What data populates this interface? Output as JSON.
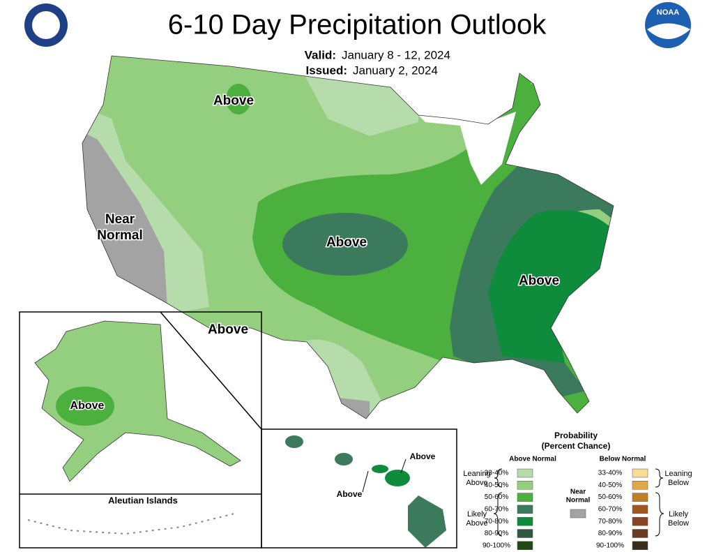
{
  "header": {
    "title": "6-10 Day Precipitation Outlook",
    "valid_label": "Valid:",
    "valid_dates": "January 8 - 12, 2024",
    "issued_label": "Issued:",
    "issued_date": "January 2, 2024"
  },
  "logo_text": "NOAA",
  "map_labels": {
    "montana": "Above",
    "central": "Above",
    "southeast": "Above",
    "southwest": "Above",
    "alaska": "Above",
    "hawaii_east": "Above",
    "hawaii_west": "Above",
    "california": [
      "Near",
      "Normal"
    ]
  },
  "inset_labels": {
    "aleutian": "Aleutian Islands"
  },
  "legend": {
    "title": [
      "Probability",
      "(Percent Chance)"
    ],
    "above_heading": "Above Normal",
    "below_heading": "Below Normal",
    "above": [
      {
        "range": "33-40%",
        "color": "#b6dcab"
      },
      {
        "range": "40-50%",
        "color": "#94cf7f"
      },
      {
        "range": "50-60%",
        "color": "#4bb03d"
      },
      {
        "range": "60-70%",
        "color": "#3b7a5d"
      },
      {
        "range": "70-80%",
        "color": "#0e8c3b"
      },
      {
        "range": "80-90%",
        "color": "#2f5a3b"
      },
      {
        "range": "90-100%",
        "color": "#1f4a15"
      }
    ],
    "below": [
      {
        "range": "33-40%",
        "color": "#f7dc97"
      },
      {
        "range": "40-50%",
        "color": "#e0a84b"
      },
      {
        "range": "50-60%",
        "color": "#c27f23"
      },
      {
        "range": "60-70%",
        "color": "#a0571f"
      },
      {
        "range": "70-80%",
        "color": "#8b4323"
      },
      {
        "range": "80-90%",
        "color": "#6b3a24"
      },
      {
        "range": "90-100%",
        "color": "#3a2a1e"
      }
    ],
    "leaning_above": [
      "Leaning",
      "Above"
    ],
    "likely_above": [
      "Likely",
      "Above"
    ],
    "leaning_below": [
      "Leaning",
      "Below"
    ],
    "likely_below": [
      "Likely",
      "Below"
    ],
    "near_normal": {
      "label": [
        "Near",
        "Normal"
      ],
      "color": "#a3a3a3"
    }
  }
}
